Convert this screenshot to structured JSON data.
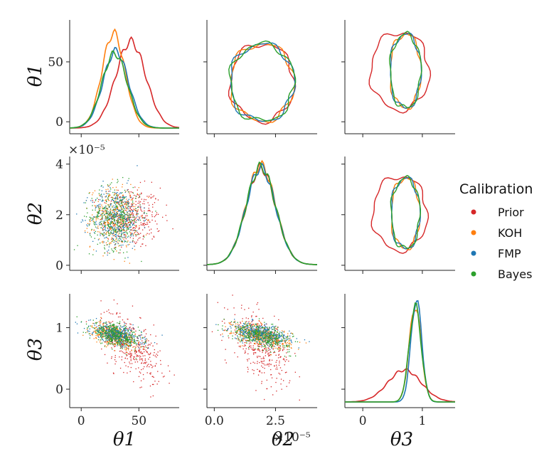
{
  "chart_data": {
    "type": "scatter",
    "subtype": "pair-plot",
    "variables": [
      "θ1",
      "θ2",
      "θ3"
    ],
    "axis_labels": {
      "x": [
        "θ1",
        "θ2",
        "θ3"
      ],
      "y": [
        "θ1",
        "θ2",
        "θ3"
      ]
    },
    "offset_text": {
      "theta2_x": "×10⁻⁵",
      "theta2_y": "×10⁻⁵"
    },
    "ticks": {
      "theta1": {
        "values": [
          0,
          50
        ],
        "labels": [
          "0",
          "50"
        ],
        "range": [
          -10,
          85
        ]
      },
      "theta2": {
        "values": [
          0,
          2.5
        ],
        "labels": [
          "0.0",
          "2.5"
        ],
        "range": [
          -0.3,
          4.2
        ]
      },
      "theta2_y": {
        "values": [
          0,
          2,
          4
        ],
        "labels": [
          "0",
          "2",
          "4"
        ],
        "range": [
          -0.2,
          4.3
        ]
      },
      "theta3": {
        "values": [
          0,
          1
        ],
        "labels": [
          "0",
          "1"
        ],
        "range": [
          -0.3,
          1.55
        ]
      },
      "theta1_y": {
        "values": [
          0,
          50
        ],
        "labels": [
          "0",
          "50"
        ],
        "range": [
          -10,
          85
        ]
      }
    },
    "legend": {
      "title": "Calibration",
      "placement": "right",
      "entries": [
        {
          "name": "Prior",
          "color": "#d62728"
        },
        {
          "name": "KOH",
          "color": "#ff7f0e"
        },
        {
          "name": "FMP",
          "color": "#1f77b4"
        },
        {
          "name": "Bayes",
          "color": "#2ca02c"
        }
      ]
    },
    "series": [
      {
        "name": "Prior",
        "color": "#d62728",
        "theta1": {
          "mean": 43,
          "sd": 13
        },
        "theta2": {
          "mean": 1.9,
          "sd": 0.6
        },
        "theta3": {
          "mean": 0.7,
          "sd": 0.28
        },
        "peaks": {
          "theta1": 73,
          "theta2": 3.9,
          "theta3": 0.45
        }
      },
      {
        "name": "KOH",
        "color": "#ff7f0e",
        "theta1": {
          "mean": 28,
          "sd": 10
        },
        "theta2": {
          "mean": 1.9,
          "sd": 0.6
        },
        "theta3": {
          "mean": 0.88,
          "sd": 0.1
        },
        "peaks": {
          "theta1": 80,
          "theta2": 4.0,
          "theta3": 1.35
        }
      },
      {
        "name": "FMP",
        "color": "#1f77b4",
        "theta1": {
          "mean": 30,
          "sd": 11
        },
        "theta2": {
          "mean": 1.9,
          "sd": 0.6
        },
        "theta3": {
          "mean": 0.9,
          "sd": 0.09
        },
        "peaks": {
          "theta1": 65,
          "theta2": 3.9,
          "theta3": 1.45
        }
      },
      {
        "name": "Bayes",
        "color": "#2ca02c",
        "theta1": {
          "mean": 29,
          "sd": 11
        },
        "theta2": {
          "mean": 1.9,
          "sd": 0.6
        },
        "theta3": {
          "mean": 0.88,
          "sd": 0.1
        },
        "peaks": {
          "theta1": 63,
          "theta2": 3.95,
          "theta3": 1.35
        }
      }
    ],
    "correlation_theta1_theta3": -0.55,
    "correlation_theta2_theta3": -0.5,
    "grid": false
  }
}
